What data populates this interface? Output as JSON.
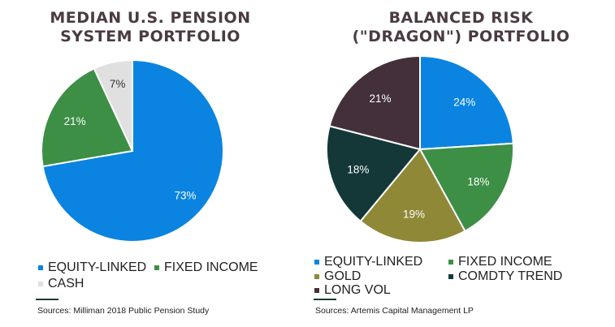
{
  "colors": {
    "title": "#4a3b43",
    "rule": "#1e3a34"
  },
  "chart_data": [
    {
      "type": "pie",
      "title_lines": [
        "MEDIAN U.S. PENSION",
        "SYSTEM PORTFOLIO"
      ],
      "slices": [
        {
          "label": "EQUITY-LINKED",
          "value": 73,
          "text": "73%",
          "color": "#0a84e0",
          "text_color": "#ffffff"
        },
        {
          "label": "FIXED INCOME",
          "value": 21,
          "text": "21%",
          "color": "#3c8f45",
          "text_color": "#ffffff"
        },
        {
          "label": "CASH",
          "value": 7,
          "text": "7%",
          "color": "#e0e0e0",
          "text_color": "#333333"
        }
      ],
      "legend": [
        "EQUITY-LINKED",
        "FIXED INCOME",
        "CASH"
      ],
      "source": "Sources: Milliman 2018 Public Pension Study"
    },
    {
      "type": "pie",
      "title_lines": [
        "BALANCED RISK",
        "(\"DRAGON\") PORTFOLIO"
      ],
      "slices": [
        {
          "label": "EQUITY-LINKED",
          "value": 24,
          "text": "24%",
          "color": "#0a84e0",
          "text_color": "#ffffff"
        },
        {
          "label": "FIXED INCOME",
          "value": 18,
          "text": "18%",
          "color": "#3c8f45",
          "text_color": "#ffffff"
        },
        {
          "label": "GOLD",
          "value": 19,
          "text": "19%",
          "color": "#8f8836",
          "text_color": "#ffffff"
        },
        {
          "label": "COMDTY TREND",
          "value": 18,
          "text": "18%",
          "color": "#143838",
          "text_color": "#ffffff"
        },
        {
          "label": "LONG VOL",
          "value": 21,
          "text": "21%",
          "color": "#43303a",
          "text_color": "#ffffff"
        }
      ],
      "legend": [
        "EQUITY-LINKED",
        "FIXED INCOME",
        "GOLD",
        "COMDTY TREND",
        "LONG VOL"
      ],
      "source": "Sources: Artemis Capital Management LP"
    }
  ]
}
